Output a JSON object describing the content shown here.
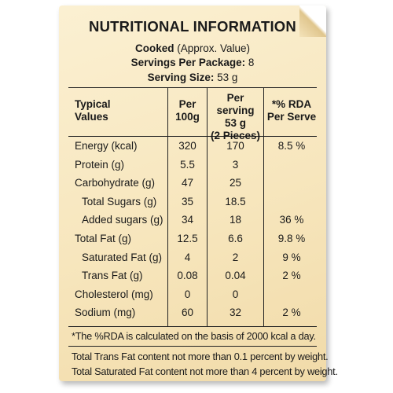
{
  "heading": "NUTRITIONAL INFORMATION",
  "cooked_label": "Cooked",
  "cooked_note": "(Approx. Value)",
  "servings_label": "Servings Per Package:",
  "servings_value": "8",
  "serving_size_label": "Serving Size:",
  "serving_size_value": "53 g",
  "table": {
    "headers": {
      "typical": [
        "Typical",
        "Values"
      ],
      "per100": [
        "Per",
        "100g"
      ],
      "perserving": [
        "Per serving",
        "53 g",
        "(2 Pieces)"
      ],
      "rda": [
        "*% RDA",
        "Per Serve"
      ]
    },
    "rows": [
      {
        "name": "Energy (kcal)",
        "per100": "320",
        "perserving": "170",
        "rda": "8.5 %"
      },
      {
        "name": "Protein (g)",
        "per100": "5.5",
        "perserving": "3",
        "rda": ""
      },
      {
        "name": "Carbohydrate (g)",
        "per100": "47",
        "perserving": "25",
        "rda": ""
      },
      {
        "name": "Total Sugars (g)",
        "per100": "35",
        "perserving": "18.5",
        "rda": ""
      },
      {
        "name": "Added sugars (g)",
        "per100": "34",
        "perserving": "18",
        "rda": "36 %"
      },
      {
        "name": "Total Fat (g)",
        "per100": "12.5",
        "perserving": "6.6",
        "rda": "9.8 %"
      },
      {
        "name": "Saturated Fat (g)",
        "per100": "4",
        "perserving": "2",
        "rda": "9 %"
      },
      {
        "name": "Trans Fat (g)",
        "per100": "0.08",
        "perserving": "0.04",
        "rda": "2 %"
      },
      {
        "name": "Cholesterol (mg)",
        "per100": "0",
        "perserving": "0",
        "rda": ""
      },
      {
        "name": "Sodium (mg)",
        "per100": "60",
        "perserving": "32",
        "rda": "2 %"
      }
    ]
  },
  "footnotes": {
    "rda_note": "*The %RDA is calculated on the basis of 2000 kcal a day.",
    "trans_fat_note": "Total Trans Fat content not more than 0.1 percent by weight.",
    "sat_fat_note": "Total Saturated Fat content not more than 4 percent by weight."
  }
}
